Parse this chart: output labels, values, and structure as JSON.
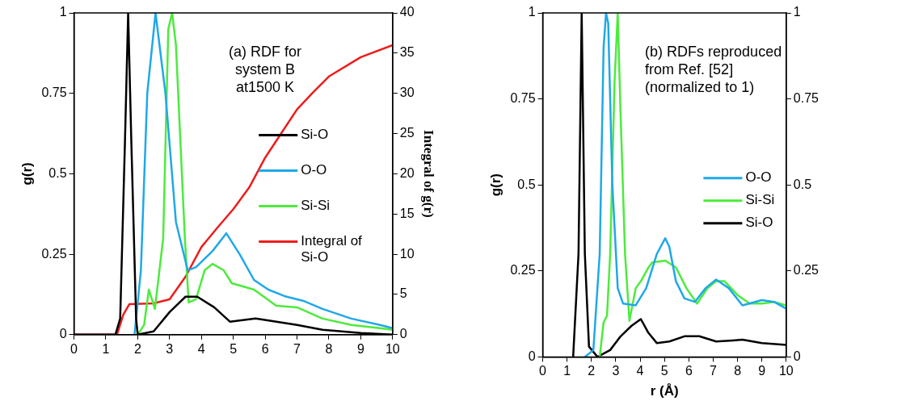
{
  "chart_data": [
    {
      "type": "line",
      "ylabel": "g(r)",
      "y2label": "Integral of g(r)",
      "xlim": [
        0,
        10
      ],
      "xticks": [
        0,
        1,
        2,
        3,
        4,
        5,
        6,
        7,
        8,
        9,
        10
      ],
      "ylim": [
        0,
        1
      ],
      "yticks": [
        0,
        0.25,
        0.5,
        0.75,
        1
      ],
      "y2lim": [
        0,
        40
      ],
      "y2ticks": [
        0,
        5,
        10,
        15,
        20,
        25,
        30,
        35,
        40
      ],
      "grid": false,
      "legend": "right",
      "marker": "none",
      "line_style": "solid",
      "annotations": [
        "(a) RDF for system B at1500 K"
      ],
      "series": [
        {
          "name": "Si-O",
          "color": "#000000",
          "x": [
            0,
            1.3,
            1.45,
            1.6,
            1.7,
            1.8,
            1.95,
            2.0,
            2.5,
            3.0,
            3.5,
            3.87,
            4.4,
            4.9,
            5.7,
            7.0,
            7.8,
            9.0,
            10
          ],
          "values": [
            0,
            0,
            0.05,
            0.6,
            1.0,
            0.6,
            0.05,
            0,
            0.01,
            0.07,
            0.118,
            0.118,
            0.085,
            0.04,
            0.05,
            0.03,
            0.015,
            0.005,
            0
          ]
        },
        {
          "name": "O-O",
          "color": "#1fa8e8",
          "x": [
            1.9,
            2.1,
            2.3,
            2.56,
            2.87,
            3.2,
            3.57,
            3.83,
            4.35,
            4.78,
            5.2,
            5.65,
            6.1,
            6.6,
            7.2,
            7.8,
            8.7,
            9.6,
            10
          ],
          "values": [
            0,
            0.2,
            0.75,
            1.0,
            0.75,
            0.35,
            0.2,
            0.21,
            0.26,
            0.315,
            0.25,
            0.17,
            0.14,
            0.12,
            0.105,
            0.08,
            0.05,
            0.03,
            0.02
          ]
        },
        {
          "name": "Si-Si",
          "color": "#4ceb3c",
          "x": [
            2.0,
            2.2,
            2.35,
            2.54,
            2.8,
            2.96,
            3.08,
            3.2,
            3.48,
            3.6,
            3.83,
            4.1,
            4.35,
            4.7,
            4.95,
            5.65,
            6.35,
            7.0,
            7.8,
            8.7,
            9.6,
            10
          ],
          "values": [
            0,
            0.03,
            0.14,
            0.08,
            0.3,
            0.95,
            1.0,
            0.9,
            0.3,
            0.1,
            0.11,
            0.2,
            0.22,
            0.2,
            0.16,
            0.14,
            0.09,
            0.085,
            0.05,
            0.03,
            0.02,
            0.015
          ]
        },
        {
          "name": "Integral of Si-O",
          "color": "#ee1c1c",
          "axis": "y2",
          "x": [
            0,
            1.35,
            1.55,
            1.74,
            2.5,
            3.0,
            3.5,
            4.0,
            4.5,
            5.0,
            5.5,
            6.0,
            6.5,
            7.0,
            7.5,
            8.0,
            9.0,
            10
          ],
          "values": [
            0,
            0,
            2.5,
            3.8,
            3.9,
            4.4,
            7.2,
            10.9,
            13.3,
            15.6,
            18.3,
            22,
            25,
            28,
            30.1,
            32.1,
            34.5,
            36
          ]
        }
      ]
    },
    {
      "type": "line",
      "xlabel": "r (Å)",
      "ylabel": "g(r)",
      "xlim": [
        0,
        10
      ],
      "xticks": [
        0,
        1,
        2,
        3,
        4,
        5,
        6,
        7,
        8,
        9,
        10
      ],
      "ylim": [
        0,
        1
      ],
      "yticks": [
        0,
        0.25,
        0.5,
        0.75,
        1
      ],
      "y2lim": [
        0,
        1
      ],
      "y2ticks": [
        0,
        0.25,
        0.5,
        0.75,
        1
      ],
      "grid": false,
      "legend": "right",
      "marker": "none",
      "line_style": "solid",
      "annotations": [
        "(b) RDFs reproduced from Ref. [52] (normalized to 1)"
      ],
      "series": [
        {
          "name": "O-O",
          "color": "#1fa8e8",
          "x": [
            1.73,
            2.08,
            2.34,
            2.5,
            2.6,
            2.69,
            2.86,
            3.08,
            3.3,
            3.82,
            4.25,
            4.69,
            5.03,
            5.2,
            5.47,
            5.82,
            6.25,
            6.69,
            7.12,
            7.64,
            8.2,
            9.0,
            9.5,
            10
          ],
          "values": [
            0,
            0.02,
            0.3,
            0.9,
            1.0,
            0.97,
            0.5,
            0.2,
            0.155,
            0.15,
            0.2,
            0.3,
            0.345,
            0.32,
            0.22,
            0.17,
            0.16,
            0.2,
            0.225,
            0.2,
            0.15,
            0.165,
            0.16,
            0.14
          ]
        },
        {
          "name": "Si-Si",
          "color": "#4ceb3c",
          "x": [
            2.34,
            2.5,
            2.64,
            2.77,
            2.95,
            3.08,
            3.2,
            3.38,
            3.56,
            3.82,
            4.03,
            4.34,
            4.5,
            5.03,
            5.47,
            5.9,
            6.34,
            6.77,
            7.12,
            7.47,
            8.0,
            8.5,
            9.0,
            9.5,
            10
          ],
          "values": [
            0,
            0.1,
            0.12,
            0.3,
            0.8,
            1.0,
            0.7,
            0.3,
            0.105,
            0.2,
            0.22,
            0.26,
            0.275,
            0.28,
            0.26,
            0.2,
            0.155,
            0.2,
            0.22,
            0.22,
            0.18,
            0.155,
            0.155,
            0.16,
            0.15
          ]
        },
        {
          "name": "Si-O",
          "color": "#000000",
          "x": [
            1.25,
            1.47,
            1.6,
            1.73,
            1.9,
            2.25,
            2.77,
            3.2,
            3.64,
            4.03,
            4.34,
            4.69,
            5.2,
            5.82,
            6.43,
            7.12,
            7.82,
            8.2,
            9.0,
            10
          ],
          "values": [
            0,
            0.3,
            1.0,
            0.3,
            0.03,
            0,
            0.02,
            0.06,
            0.09,
            0.11,
            0.07,
            0.04,
            0.045,
            0.06,
            0.06,
            0.045,
            0.048,
            0.05,
            0.04,
            0.035
          ]
        }
      ]
    }
  ]
}
